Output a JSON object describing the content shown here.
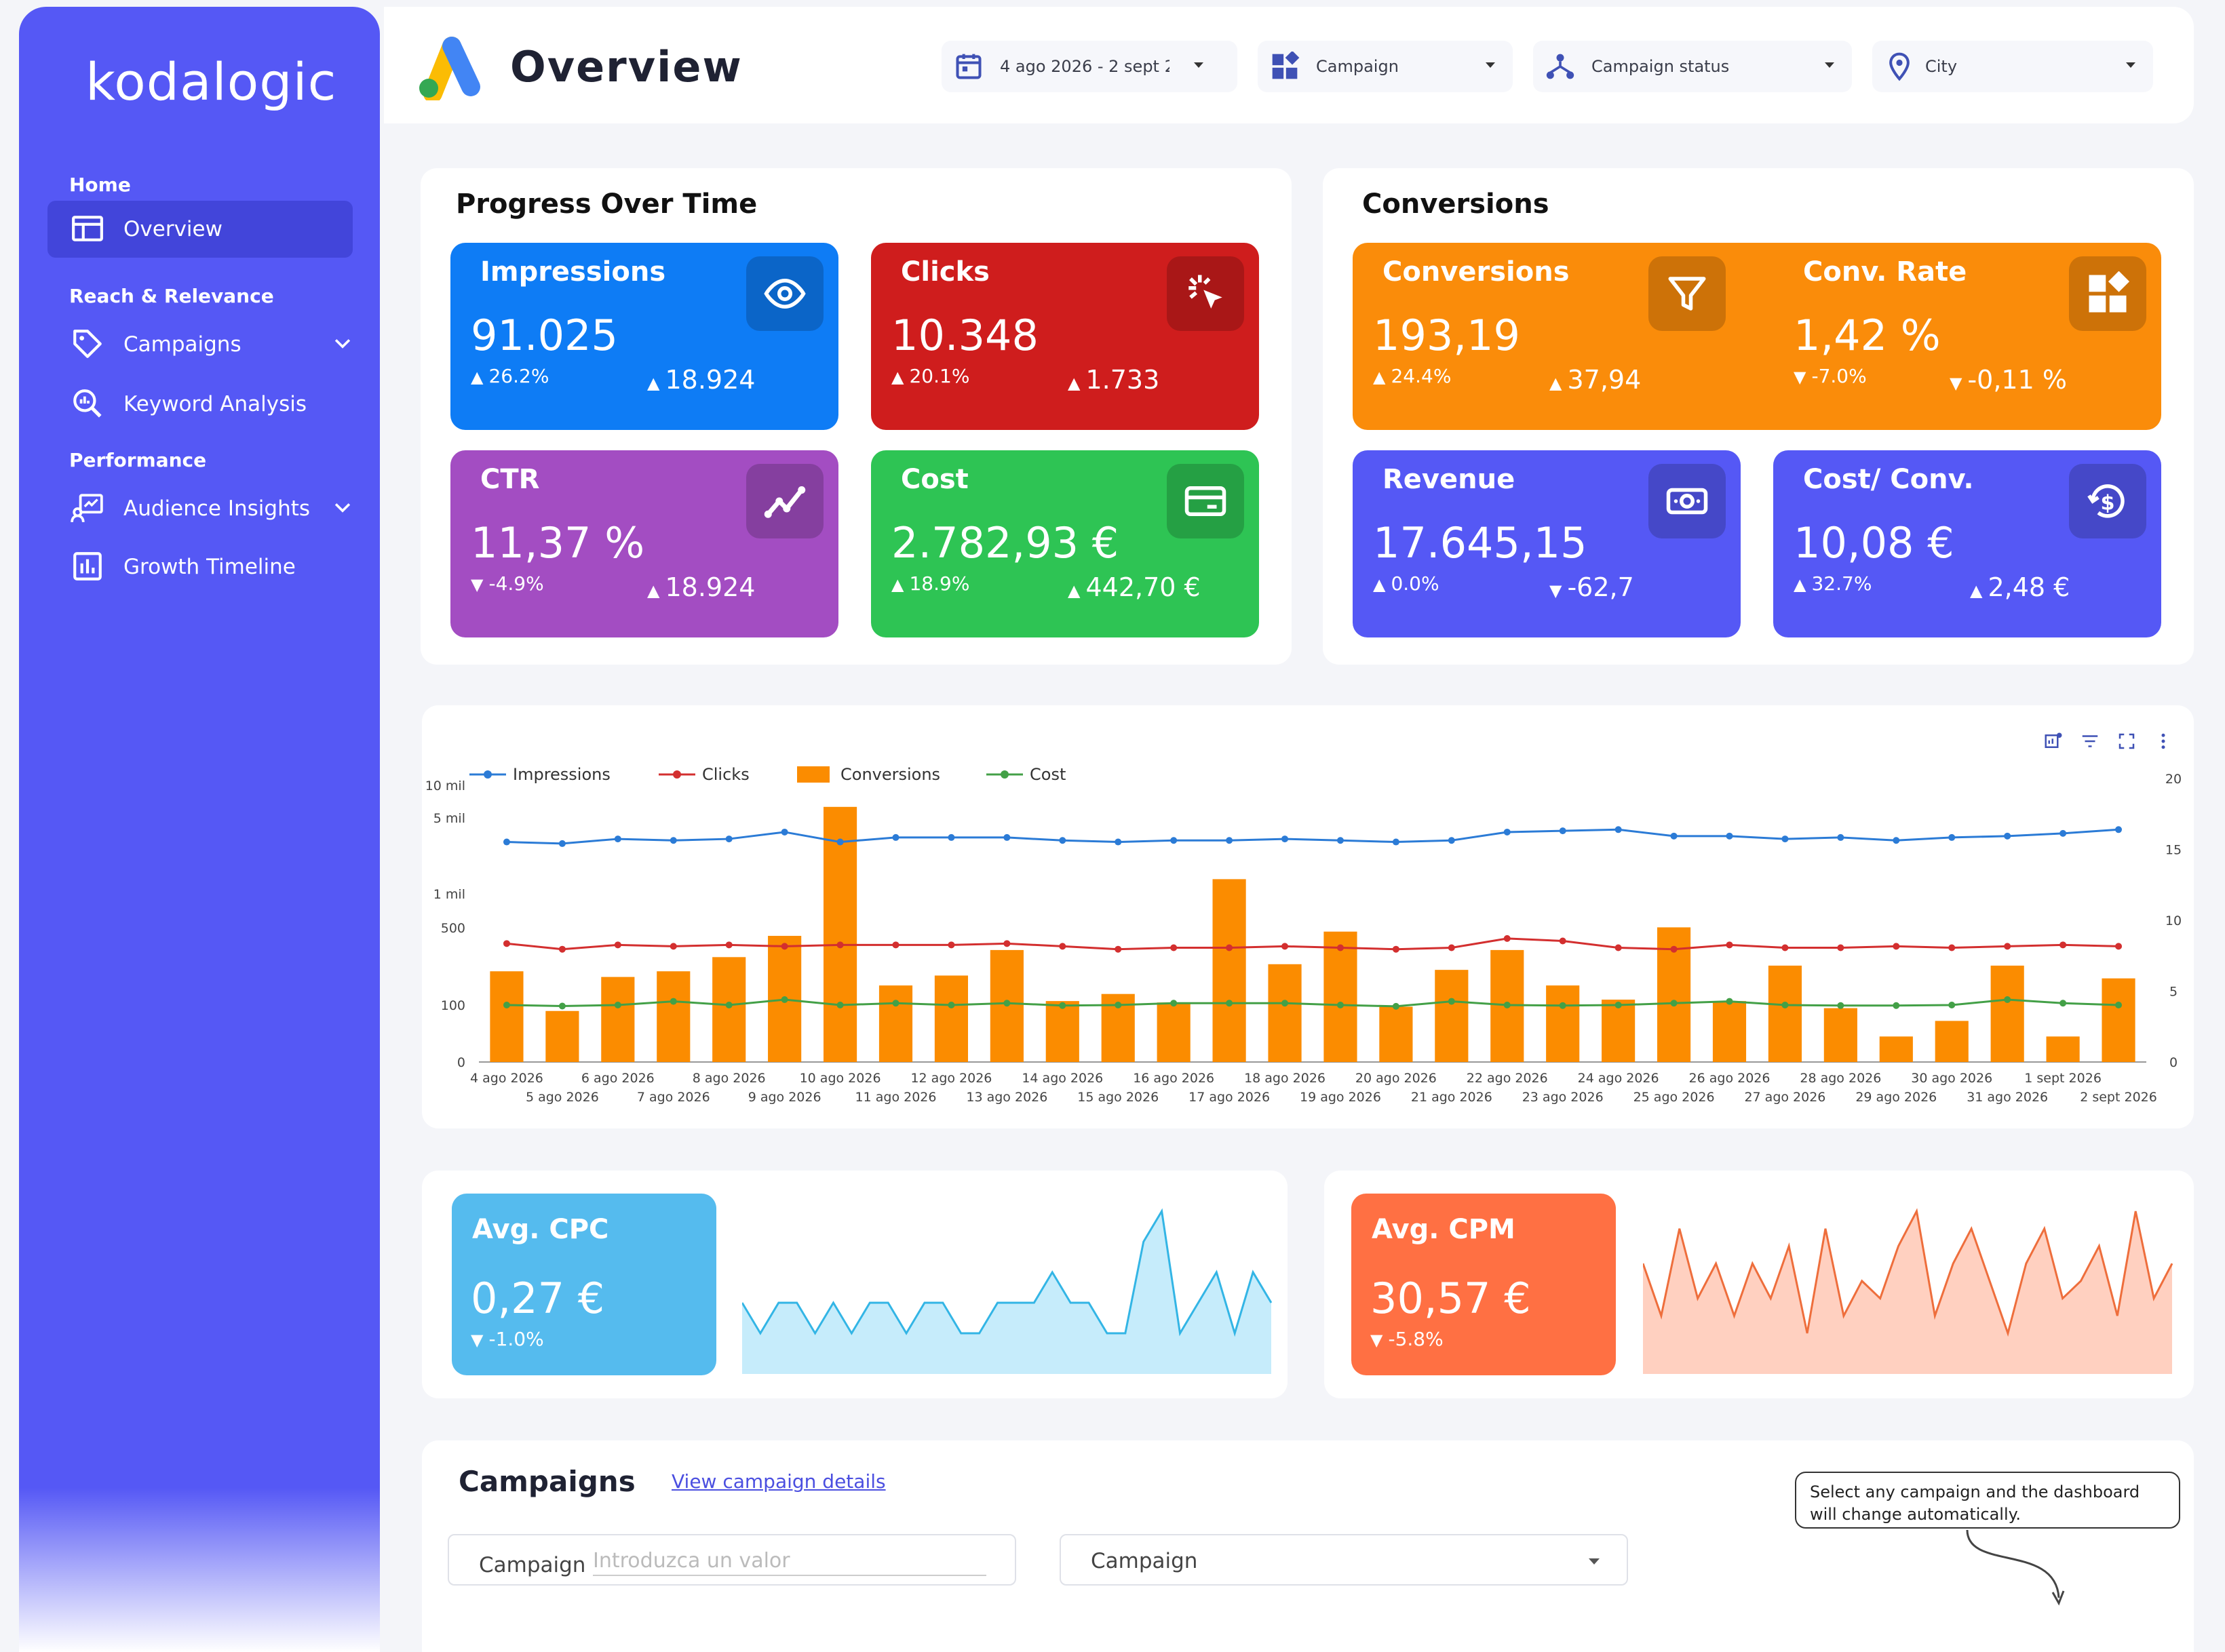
{
  "sidebar": {
    "logo": "kodalogic",
    "sections": {
      "home": "Home",
      "reach": "Reach & Relevance",
      "performance": "Performance"
    },
    "items": [
      {
        "label": "Overview",
        "icon": "layout-icon"
      },
      {
        "label": "Campaigns",
        "icon": "tag-icon"
      },
      {
        "label": "Keyword Analysis",
        "icon": "search-chart-icon"
      },
      {
        "label": "Audience Insights",
        "icon": "audience-chart-icon"
      },
      {
        "label": "Growth Timeline",
        "icon": "bar-chart-icon"
      }
    ]
  },
  "header": {
    "title": "Overview",
    "filters": {
      "date": "4 ago 2026 - 2 sept 2",
      "campaign": "Campaign",
      "status": "Campaign status",
      "city": "City"
    }
  },
  "progress": {
    "title": "Progress Over Time",
    "cards": {
      "impressions": {
        "title": "Impressions",
        "value": "91.025",
        "change": "26.2%",
        "prev": "18.924",
        "color": "#0e7cf5"
      },
      "clicks": {
        "title": "Clicks",
        "value": "10.348",
        "change": "20.1%",
        "prev": "1.733",
        "color": "#cf1d1d"
      },
      "ctr": {
        "title": "CTR",
        "value": "11,37 %",
        "change": "-4.9%",
        "prev": "18.924",
        "color": "#a34dc2"
      },
      "cost": {
        "title": "Cost",
        "value": "2.782,93 €",
        "change": "18.9%",
        "prev": "442,70 €",
        "color": "#2ec454"
      }
    }
  },
  "conversions": {
    "title": "Conversions",
    "cards": {
      "conversions": {
        "title": "Conversions",
        "value": "193,19",
        "change": "24.4%",
        "prev": "37,94",
        "color": "#fa8c0a"
      },
      "conv_rate": {
        "title": "Conv. Rate",
        "value": "1,42 %",
        "change": "-7.0%",
        "prev": "-0,11 %",
        "color": "#fa8c0a"
      },
      "revenue": {
        "title": "Revenue",
        "value": "17.645,15",
        "change": "0.0%",
        "prev": "-62,7",
        "color": "#5558f5"
      },
      "cost_conv": {
        "title": "Cost/ Conv.",
        "value": "10,08 €",
        "change": "32.7%",
        "prev": "2,48 €",
        "color": "#5558f5"
      }
    }
  },
  "chart_data": {
    "type": "bar",
    "legend": [
      "Impressions",
      "Clicks",
      "Conversions",
      "Cost"
    ],
    "legend_position": "top-left",
    "x": [
      "4 ago 2026",
      "5 ago 2026",
      "6 ago 2026",
      "7 ago 2026",
      "8 ago 2026",
      "9 ago 2026",
      "10 ago 2026",
      "11 ago 2026",
      "12 ago 2026",
      "13 ago 2026",
      "14 ago 2026",
      "15 ago 2026",
      "16 ago 2026",
      "17 ago 2026",
      "18 ago 2026",
      "19 ago 2026",
      "20 ago 2026",
      "21 ago 2026",
      "22 ago 2026",
      "23 ago 2026",
      "24 ago 2026",
      "25 ago 2026",
      "26 ago 2026",
      "27 ago 2026",
      "28 ago 2026",
      "29 ago 2026",
      "30 ago 2026",
      "31 ago 2026",
      "1 sept 2026",
      "2 sept 2026"
    ],
    "left_axis_ticks": [
      "0",
      "100",
      "500",
      "1 mil",
      "5 mil",
      "10 mil"
    ],
    "right_axis_ticks": [
      "0",
      "5",
      "10",
      "15",
      "20"
    ],
    "right_ylim": [
      0,
      20
    ],
    "grid": false,
    "series": [
      {
        "name": "Impressions",
        "axis": "left",
        "color": "#2b7bd6",
        "values": [
          3000,
          2900,
          3200,
          3100,
          3200,
          3700,
          3000,
          3300,
          3300,
          3300,
          3100,
          3000,
          3100,
          3100,
          3200,
          3100,
          3000,
          3100,
          3700,
          3800,
          3900,
          3400,
          3400,
          3200,
          3300,
          3100,
          3300,
          3400,
          3600,
          3900
        ]
      },
      {
        "name": "Clicks",
        "axis": "left",
        "color": "#d32f2f",
        "values": [
          360,
          320,
          350,
          340,
          350,
          340,
          350,
          350,
          350,
          360,
          340,
          320,
          330,
          330,
          340,
          330,
          320,
          330,
          400,
          380,
          330,
          320,
          350,
          330,
          330,
          340,
          330,
          340,
          350,
          340
        ]
      },
      {
        "name": "Conversions",
        "axis": "right",
        "type": "bar",
        "color": "#fb8c00",
        "values": [
          6.4,
          3.6,
          6.0,
          6.4,
          7.4,
          8.9,
          18.0,
          5.4,
          6.1,
          7.9,
          4.3,
          4.8,
          4.2,
          12.9,
          6.9,
          9.2,
          3.9,
          6.5,
          7.9,
          5.4,
          4.4,
          9.5,
          4.3,
          6.8,
          3.8,
          1.8,
          2.9,
          6.8,
          1.8,
          5.9
        ]
      },
      {
        "name": "Cost",
        "axis": "left",
        "color": "#43a047",
        "values": [
          100,
          92,
          100,
          108,
          100,
          112,
          100,
          104,
          100,
          104,
          96,
          100,
          104,
          104,
          104,
          100,
          90,
          108,
          100,
          96,
          100,
          104,
          108,
          100,
          96,
          96,
          100,
          112,
          104,
          100
        ]
      }
    ]
  },
  "avg_cpc": {
    "title": "Avg. CPC",
    "value": "0,27 €",
    "change": "-1.0%",
    "color": "#55bbee",
    "series": [
      0.27,
      0.26,
      0.27,
      0.27,
      0.26,
      0.27,
      0.26,
      0.27,
      0.27,
      0.26,
      0.27,
      0.27,
      0.26,
      0.26,
      0.27,
      0.27,
      0.27,
      0.28,
      0.27,
      0.27,
      0.26,
      0.26,
      0.29,
      0.3,
      0.26,
      0.27,
      0.28,
      0.26,
      0.28,
      0.27
    ]
  },
  "avg_cpm": {
    "title": "Avg. CPM",
    "value": "30,57 €",
    "change": "-5.8%",
    "color": "#ff7043",
    "series": [
      31,
      28,
      33,
      29,
      31,
      28,
      31,
      29,
      32,
      27,
      33,
      28,
      30,
      29,
      32,
      34,
      28,
      31,
      33,
      30,
      27,
      31,
      33,
      29,
      30,
      32,
      28,
      34,
      29,
      31
    ]
  },
  "campaigns": {
    "title": "Campaigns",
    "link": "View campaign details",
    "input_label": "Campaign",
    "input_placeholder": "Introduzca un valor",
    "select_label": "Campaign",
    "tooltip": "Select any campaign and the dashboard will change automatically."
  }
}
